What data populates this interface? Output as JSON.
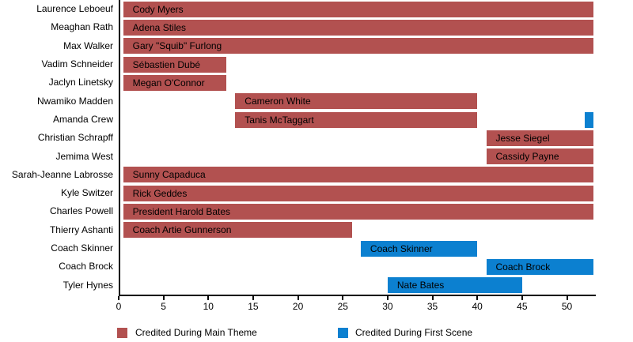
{
  "chart_data": {
    "type": "bar",
    "orientation": "horizontal",
    "title": "",
    "xlabel": "",
    "ylabel": "",
    "xlim": [
      0,
      53.2
    ],
    "xticks": [
      0,
      5,
      10,
      15,
      20,
      25,
      30,
      35,
      40,
      45,
      50
    ],
    "grid": false,
    "legend": {
      "position": "bottom",
      "items": [
        {
          "series": "main_theme",
          "label": "Credited During Main Theme",
          "color": "#b25150"
        },
        {
          "series": "first_scene",
          "label": "Credited During First Scene",
          "color": "#0c80d0"
        }
      ]
    },
    "rows": [
      {
        "axis_label": "Laurence Leboeuf",
        "segments": [
          {
            "label": "Cody Myers",
            "series": "main_theme",
            "start": 0.5,
            "end": 53
          }
        ]
      },
      {
        "axis_label": "Meaghan Rath",
        "segments": [
          {
            "label": "Adena Stiles",
            "series": "main_theme",
            "start": 0.5,
            "end": 53
          }
        ]
      },
      {
        "axis_label": "Max Walker",
        "segments": [
          {
            "label": "Gary \"Squib\" Furlong",
            "series": "main_theme",
            "start": 0.5,
            "end": 53
          }
        ]
      },
      {
        "axis_label": "Vadim Schneider",
        "segments": [
          {
            "label": "Sébastien Dubé",
            "series": "main_theme",
            "start": 0.5,
            "end": 12
          }
        ]
      },
      {
        "axis_label": "Jaclyn Linetsky",
        "segments": [
          {
            "label": "Megan O'Connor",
            "series": "main_theme",
            "start": 0.5,
            "end": 12
          }
        ]
      },
      {
        "axis_label": "Nwamiko Madden",
        "segments": [
          {
            "label": "Cameron White",
            "series": "main_theme",
            "start": 13,
            "end": 40
          }
        ]
      },
      {
        "axis_label": "Amanda Crew",
        "segments": [
          {
            "label": "Tanis McTaggart",
            "series": "main_theme",
            "start": 13,
            "end": 40
          },
          {
            "label": "",
            "series": "first_scene",
            "start": 52,
            "end": 53
          }
        ]
      },
      {
        "axis_label": "Christian Schrapff",
        "segments": [
          {
            "label": "Jesse Siegel",
            "series": "main_theme",
            "start": 41,
            "end": 53
          }
        ]
      },
      {
        "axis_label": "Jemima West",
        "segments": [
          {
            "label": "Cassidy Payne",
            "series": "main_theme",
            "start": 41,
            "end": 53
          }
        ]
      },
      {
        "axis_label": "Sarah-Jeanne Labrosse",
        "segments": [
          {
            "label": "Sunny Capaduca",
            "series": "main_theme",
            "start": 0.5,
            "end": 53
          }
        ]
      },
      {
        "axis_label": "Kyle Switzer",
        "segments": [
          {
            "label": "Rick Geddes",
            "series": "main_theme",
            "start": 0.5,
            "end": 53
          }
        ]
      },
      {
        "axis_label": "Charles Powell",
        "segments": [
          {
            "label": "President Harold Bates",
            "series": "main_theme",
            "start": 0.5,
            "end": 53
          }
        ]
      },
      {
        "axis_label": "Thierry Ashanti",
        "segments": [
          {
            "label": "Coach Artie Gunnerson",
            "series": "main_theme",
            "start": 0.5,
            "end": 26
          }
        ]
      },
      {
        "axis_label": "Coach Skinner",
        "segments": [
          {
            "label": "Coach Skinner",
            "series": "first_scene",
            "start": 27,
            "end": 40
          }
        ]
      },
      {
        "axis_label": "Coach Brock",
        "segments": [
          {
            "label": "Coach Brock",
            "series": "first_scene",
            "start": 41,
            "end": 53
          }
        ]
      },
      {
        "axis_label": "Tyler Hynes",
        "segments": [
          {
            "label": "Nate Bates",
            "series": "first_scene",
            "start": 30,
            "end": 45
          }
        ]
      }
    ]
  },
  "colors": {
    "main_theme": "#b25150",
    "first_scene": "#0c80d0",
    "axis": "#000000",
    "text": "#000000",
    "background": "#ffffff"
  }
}
